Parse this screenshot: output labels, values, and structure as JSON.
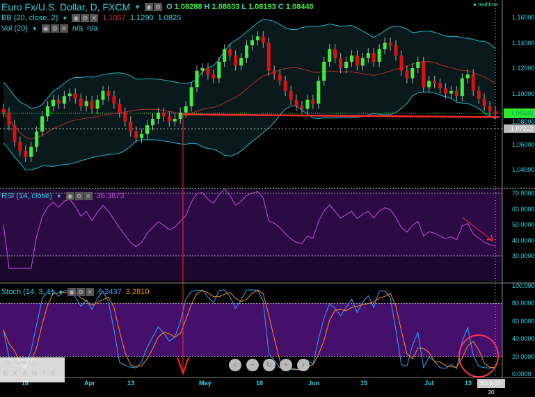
{
  "header": {
    "title": "Euro Fx/U.S. Dollar, D, FXCM",
    "o_label": "O",
    "o": "1.08288",
    "h_label": "H",
    "h": "1.08633",
    "l_label": "L",
    "l": "1.08193",
    "c_label": "C",
    "c": "1.08440",
    "realtime": "realtime"
  },
  "bb": {
    "label": "BB (20, close, 2)",
    "mid": "1.1057",
    "upper": "1.1290",
    "lower": "1.0825"
  },
  "vol": {
    "label": "Vol (20)",
    "v1": "n/a",
    "v2": "n/a"
  },
  "rsi": {
    "label": "RSI (14, close)",
    "value": "36.3873"
  },
  "stoch": {
    "label": "Stoch (14, 3, 1)",
    "k": "6.2437",
    "d": "3.2810"
  },
  "price_axis": [
    "1.16000",
    "1.14000",
    "1.12000",
    "1.10000",
    "1.08000",
    "1.06000",
    "1.04000"
  ],
  "price_current": "1.08440",
  "price_marker": "1.07222",
  "rsi_axis": [
    "70.0000",
    "60.0000",
    "50.0000",
    "40.0000",
    "30.0000"
  ],
  "stoch_axis": [
    "100.0000",
    "80.0000",
    "60.0000",
    "40.0000",
    "20.0000",
    "0.0000"
  ],
  "date_axis": [
    "16",
    "Apr",
    "13",
    "May",
    "18",
    "Jun",
    "15",
    "Jul",
    "13"
  ],
  "date_current": "2015-07-20",
  "sponsor": {
    "line1": "Sponsored by",
    "line2": "EXANTE"
  },
  "zoom_controls": [
    "‹",
    "−",
    "↻",
    "+",
    "›"
  ],
  "colors": {
    "up": "#3fef3f",
    "down": "#e01010",
    "bb": "#1fb8c8",
    "bbmid": "#b03030",
    "rsi": "#c24fe0",
    "k": "#2aa8ff",
    "d": "#ff8c1a",
    "annot": "#ff2a2a"
  },
  "chart_data": {
    "type": "candlestick",
    "title": "Euro Fx/U.S. Dollar, D, FXCM",
    "ylim": [
      1.03,
      1.17
    ],
    "closes": [
      1.085,
      1.075,
      1.062,
      1.055,
      1.05,
      1.058,
      1.07,
      1.082,
      1.09,
      1.095,
      1.092,
      1.098,
      1.1,
      1.096,
      1.09,
      1.094,
      1.088,
      1.095,
      1.102,
      1.098,
      1.092,
      1.085,
      1.078,
      1.07,
      1.065,
      1.068,
      1.075,
      1.08,
      1.085,
      1.082,
      1.078,
      1.08,
      1.085,
      1.09,
      1.105,
      1.118,
      1.12,
      1.115,
      1.112,
      1.125,
      1.135,
      1.13,
      1.122,
      1.128,
      1.138,
      1.142,
      1.145,
      1.14,
      1.118,
      1.115,
      1.11,
      1.102,
      1.095,
      1.09,
      1.088,
      1.095,
      1.092,
      1.11,
      1.125,
      1.135,
      1.128,
      1.12,
      1.125,
      1.13,
      1.122,
      1.128,
      1.132,
      1.125,
      1.135,
      1.14,
      1.138,
      1.13,
      1.118,
      1.112,
      1.12,
      1.125,
      1.105,
      1.11,
      1.108,
      1.104,
      1.1,
      1.102,
      1.098,
      1.112,
      1.115,
      1.102,
      1.096,
      1.09,
      1.086,
      1.084
    ],
    "support_level": 1.083,
    "rsi_bands": [
      30,
      70
    ],
    "stoch_bands": [
      20,
      80
    ]
  }
}
